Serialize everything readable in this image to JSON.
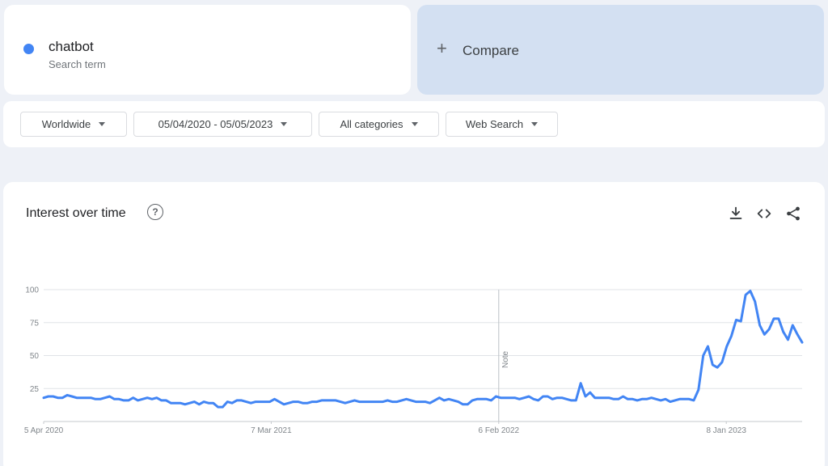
{
  "search_term": {
    "name": "chatbot",
    "subtitle": "Search term",
    "color": "#4285f4"
  },
  "compare": {
    "icon": "plus-icon",
    "label": "Compare"
  },
  "filters": {
    "region": "Worldwide",
    "date_range": "05/04/2020 - 05/05/2023",
    "category": "All categories",
    "search_type": "Web Search"
  },
  "chart_panel": {
    "title": "Interest over time",
    "icons": [
      "help-icon",
      "download-icon",
      "embed-code-icon",
      "share-icon"
    ]
  },
  "chart_data": {
    "type": "line",
    "title": "",
    "xlabel": "",
    "ylabel": "",
    "ylim": [
      0,
      100
    ],
    "yticks": [
      25,
      50,
      75,
      100
    ],
    "x_start": "5 Apr 2020",
    "x_end": "30 Apr 2023",
    "x_ticks": [
      "5 Apr 2020",
      "7 Mar 2021",
      "6 Feb 2022",
      "8 Jan 2023"
    ],
    "note": {
      "x": "6 Feb 2022",
      "label": "Note"
    },
    "grid": true,
    "series": [
      {
        "name": "chatbot",
        "color": "#4285f4",
        "values": [
          18,
          19,
          19,
          18,
          18,
          20,
          19,
          18,
          18,
          18,
          18,
          17,
          17,
          18,
          19,
          17,
          17,
          16,
          16,
          18,
          16,
          17,
          18,
          17,
          18,
          16,
          16,
          14,
          14,
          14,
          13,
          14,
          15,
          13,
          15,
          14,
          14,
          11,
          11,
          15,
          14,
          16,
          16,
          15,
          14,
          15,
          15,
          15,
          15,
          17,
          15,
          13,
          14,
          15,
          15,
          14,
          14,
          15,
          15,
          16,
          16,
          16,
          16,
          15,
          14,
          15,
          16,
          15,
          15,
          15,
          15,
          15,
          15,
          16,
          15,
          15,
          16,
          17,
          16,
          15,
          15,
          15,
          14,
          16,
          18,
          16,
          17,
          16,
          15,
          13,
          13,
          16,
          17,
          17,
          17,
          16,
          19,
          18,
          18,
          18,
          18,
          17,
          18,
          19,
          17,
          16,
          19,
          19,
          17,
          18,
          18,
          17,
          16,
          16,
          29,
          19,
          22,
          18,
          18,
          18,
          18,
          17,
          17,
          19,
          17,
          17,
          16,
          17,
          17,
          18,
          17,
          16,
          17,
          15,
          16,
          17,
          17,
          17,
          16,
          24,
          50,
          57,
          43,
          41,
          45,
          57,
          65,
          77,
          76,
          96,
          99,
          91,
          73,
          66,
          70,
          78,
          78,
          68,
          62,
          73,
          66,
          60
        ]
      }
    ]
  }
}
